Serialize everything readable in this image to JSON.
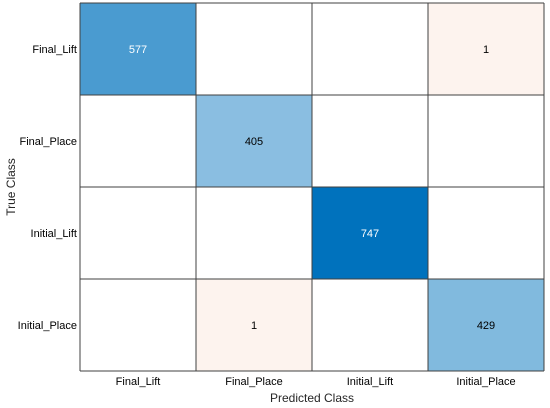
{
  "chart_data": {
    "type": "heatmap",
    "chart_kind": "confusion-matrix",
    "xlabel": "Predicted Class",
    "ylabel": "True Class",
    "x_categories": [
      "Final_Lift",
      "Final_Place",
      "Initial_Lift",
      "Initial_Place"
    ],
    "y_categories": [
      "Final_Lift",
      "Final_Place",
      "Initial_Lift",
      "Initial_Place"
    ],
    "values": [
      [
        577,
        null,
        null,
        1
      ],
      [
        null,
        405,
        null,
        null
      ],
      [
        null,
        null,
        747,
        null
      ],
      [
        null,
        1,
        null,
        429
      ]
    ],
    "colors": {
      "diagonal_max": "#0072bd",
      "off_diagonal_tint": "#fdf3ee",
      "empty": "#ffffff",
      "grid_line": "#404040",
      "light_text": "#ffffff",
      "dark_text": "#000000"
    },
    "grid": true,
    "legend": "none"
  }
}
